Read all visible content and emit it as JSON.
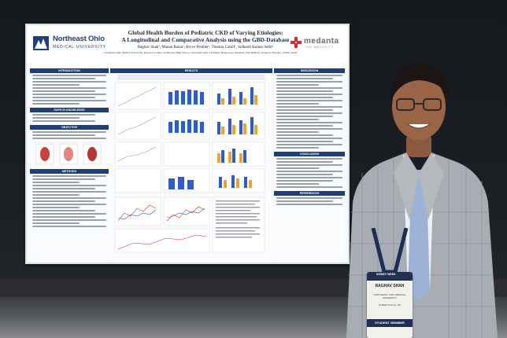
{
  "poster": {
    "institution_name": "Northeast Ohio",
    "institution_sub": "MEDICAL UNIVERSITY",
    "title_line1": "Global Health Burden of Pediatric CKD of Varying Etiologies:",
    "title_line2": "A Longitudinal and Comparative Analysis using the GBD-Database",
    "authors": "Raghav Shah¹, Manan Raina², Bryce Pember¹, Thomas Cahill¹, Sidharth Kumar Sethi³",
    "affiliations": "1 Northeast Ohio Medical University, Rootstown, Ohio; 2) Hawken High School, Cleveland, Ohio 3 Pediatric Nephrology, Medanta, The Medicity, Gurgaon, Haryana, 122001, India",
    "partner_logo": "medanta",
    "partner_sub": "THE MEDICITY",
    "sections": {
      "introduction": "INTRODUCTION",
      "gaps": "GAPS IN KNOWLEDGE",
      "objective": "OBJECTIVE",
      "methods": "METHODS",
      "results": "RESULTS",
      "discussion": "DISCUSSION",
      "conclusion": "CONCLUSION",
      "references": "REFERENCES"
    }
  },
  "badge": {
    "event": "KIDNEY WEEK",
    "name": "RAGHAV SHAH",
    "org": "NORTHEAST OHIO MEDICAL UNIVERSITY",
    "location": "STREETSVILLE, OH",
    "role": "STUDENT MEMBER"
  },
  "colors": {
    "poster_blue": "#1f3f7a",
    "medanta_red": "#d62e2e",
    "chart_blue": "#2f5bd1",
    "chart_orange": "#f2a22b",
    "board": "#15181c"
  }
}
